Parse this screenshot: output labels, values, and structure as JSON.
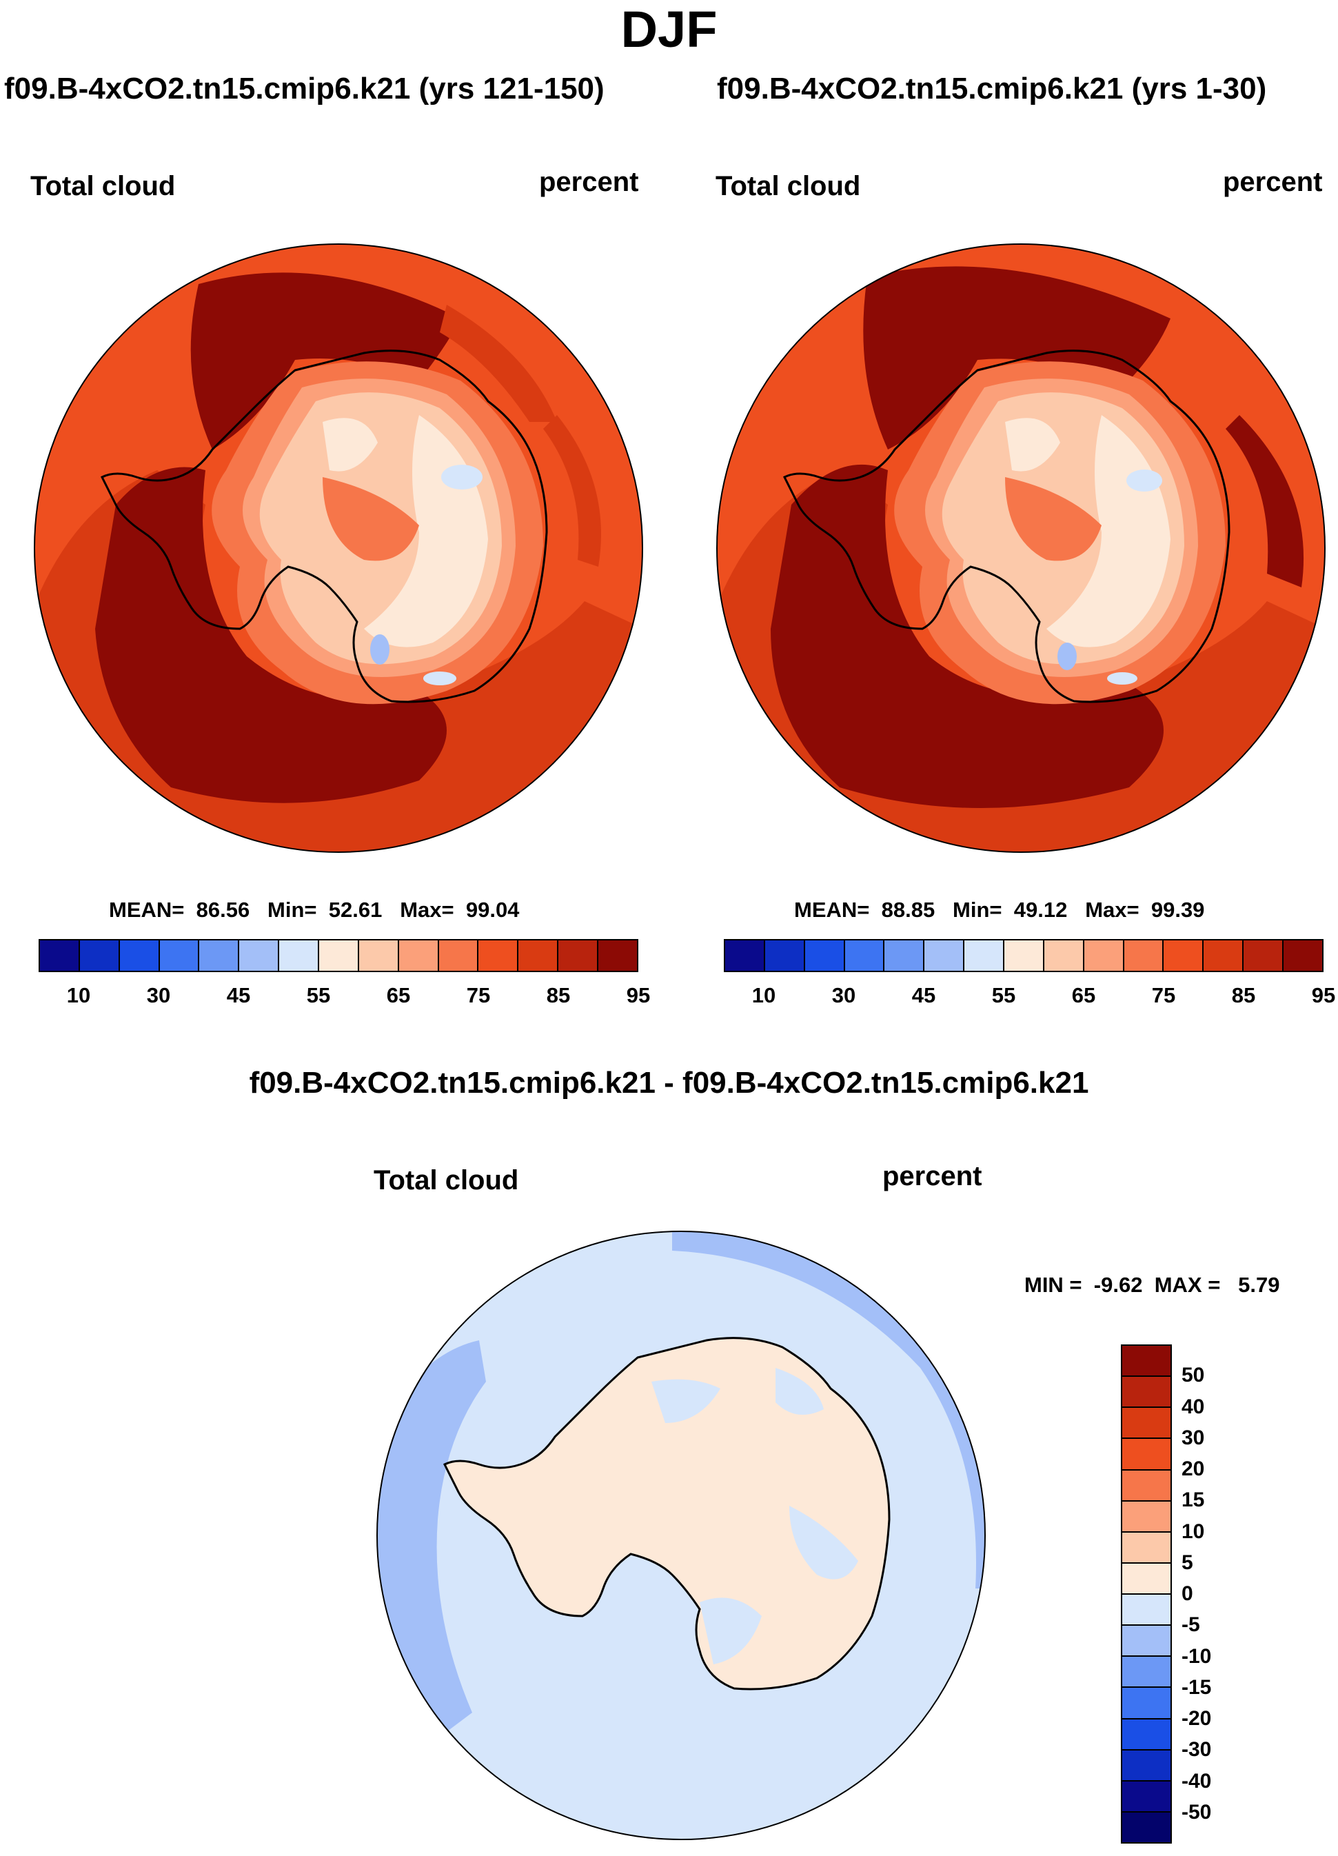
{
  "figure": {
    "title": "DJF"
  },
  "panels": [
    {
      "case": "f09.B-4xCO2.tn15.cmip6.k21 (yrs 121-150)",
      "field": "Total cloud",
      "units": "percent",
      "stats": {
        "MEAN": "86.56",
        "Min": "52.61",
        "Max": "99.04"
      },
      "colorbar_colors": [
        "#0a0a8c",
        "#0d2fc4",
        "#1a4fe6",
        "#3d74f2",
        "#6c98f5",
        "#a3bff8",
        "#d6e6fb",
        "#fde9d8",
        "#fcc9aa",
        "#fba07a",
        "#f6764a",
        "#ee4f1f",
        "#d93b12",
        "#b8230d",
        "#8c0a05"
      ],
      "ticks": [
        "10",
        "30",
        "45",
        "55",
        "65",
        "75",
        "85",
        "95"
      ]
    },
    {
      "case": "f09.B-4xCO2.tn15.cmip6.k21 (yrs 1-30)",
      "field": "Total cloud",
      "units": "percent",
      "stats": {
        "MEAN": "88.85",
        "Min": "49.12",
        "Max": "99.39"
      },
      "colorbar_colors": [
        "#0a0a8c",
        "#0d2fc4",
        "#1a4fe6",
        "#3d74f2",
        "#6c98f5",
        "#a3bff8",
        "#d6e6fb",
        "#fde9d8",
        "#fcc9aa",
        "#fba07a",
        "#f6764a",
        "#ee4f1f",
        "#d93b12",
        "#b8230d",
        "#8c0a05"
      ],
      "ticks": [
        "10",
        "30",
        "45",
        "55",
        "65",
        "75",
        "85",
        "95"
      ]
    }
  ],
  "diff": {
    "title": "f09.B-4xCO2.tn15.cmip6.k21 - f09.B-4xCO2.tn15.cmip6.k21",
    "field": "Total cloud",
    "units": "percent",
    "minmax": {
      "MIN": "-9.62",
      "MAX": "5.79"
    },
    "colorbar_colors": [
      "#8c0a05",
      "#b8230d",
      "#d93b12",
      "#ee4f1f",
      "#f6764a",
      "#fba07a",
      "#fcc9aa",
      "#fde9d8",
      "#d6e6fb",
      "#a3bff8",
      "#6c98f5",
      "#3d74f2",
      "#1a4fe6",
      "#0d2fc4",
      "#0a0a8c",
      "#03036b"
    ],
    "ticks": [
      "50",
      "40",
      "30",
      "20",
      "15",
      "10",
      "5",
      "0",
      "-5",
      "-10",
      "-15",
      "-20",
      "-30",
      "-40",
      "-50"
    ]
  },
  "labels": {
    "mean": "MEAN=",
    "min": "Min=",
    "max": "Max=",
    "MIN": "MIN =",
    "MAX": "MAX ="
  }
}
